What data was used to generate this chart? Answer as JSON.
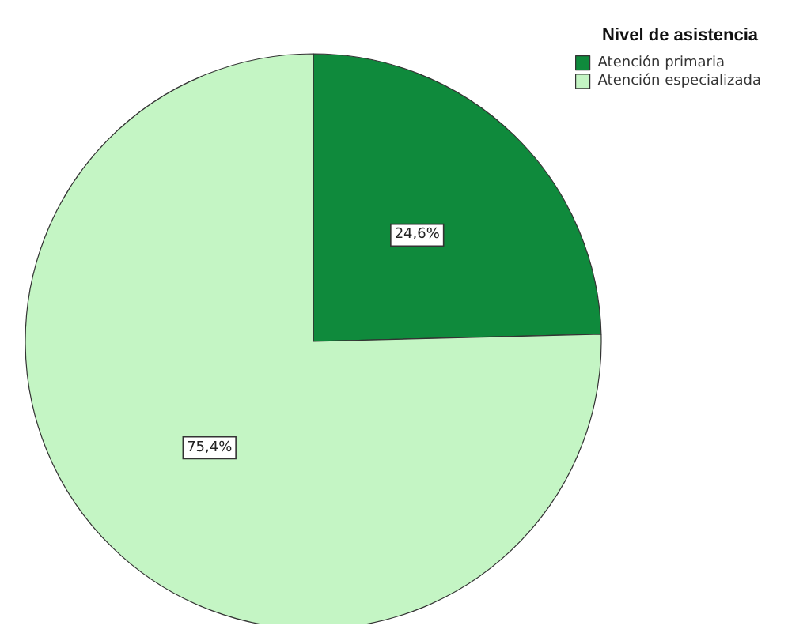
{
  "chart_data": {
    "type": "pie",
    "legend_title": "Nivel de asistencia",
    "categories": [
      "Atención primaria",
      "Atención especializada"
    ],
    "values": [
      24.6,
      75.4
    ],
    "colors": [
      "#0f8a3c",
      "#c4f5c4"
    ],
    "value_labels": [
      "24,6%",
      "75,4%"
    ],
    "legend": "top right"
  }
}
